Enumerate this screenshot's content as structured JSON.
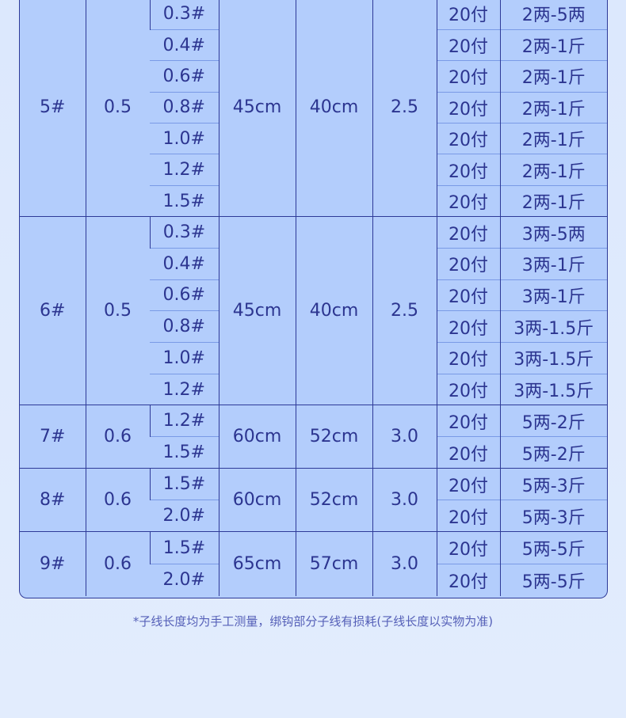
{
  "colors": {
    "background": "#dde9fd",
    "table_fill": "#b3cdfc",
    "border": "#2e3a98",
    "text": "#2c3590"
  },
  "groups": [
    {
      "model": "5#",
      "diameter": "0.5",
      "length_a": "45cm",
      "length_b": "40cm",
      "size": "2.5",
      "rows": [
        {
          "line": "0.3#",
          "qty": "20付",
          "load": "2两-5两"
        },
        {
          "line": "0.4#",
          "qty": "20付",
          "load": "2两-1斤"
        },
        {
          "line": "0.6#",
          "qty": "20付",
          "load": "2两-1斤"
        },
        {
          "line": "0.8#",
          "qty": "20付",
          "load": "2两-1斤"
        },
        {
          "line": "1.0#",
          "qty": "20付",
          "load": "2两-1斤"
        },
        {
          "line": "1.2#",
          "qty": "20付",
          "load": "2两-1斤"
        },
        {
          "line": "1.5#",
          "qty": "20付",
          "load": "2两-1斤"
        }
      ]
    },
    {
      "model": "6#",
      "diameter": "0.5",
      "length_a": "45cm",
      "length_b": "40cm",
      "size": "2.5",
      "rows": [
        {
          "line": "0.3#",
          "qty": "20付",
          "load": "3两-5两"
        },
        {
          "line": "0.4#",
          "qty": "20付",
          "load": "3两-1斤"
        },
        {
          "line": "0.6#",
          "qty": "20付",
          "load": "3两-1斤"
        },
        {
          "line": "0.8#",
          "qty": "20付",
          "load": "3两-1.5斤"
        },
        {
          "line": "1.0#",
          "qty": "20付",
          "load": "3两-1.5斤"
        },
        {
          "line": "1.2#",
          "qty": "20付",
          "load": "3两-1.5斤"
        }
      ]
    },
    {
      "model": "7#",
      "diameter": "0.6",
      "length_a": "60cm",
      "length_b": "52cm",
      "size": "3.0",
      "rows": [
        {
          "line": "1.2#",
          "qty": "20付",
          "load": "5两-2斤"
        },
        {
          "line": "1.5#",
          "qty": "20付",
          "load": "5两-2斤"
        }
      ]
    },
    {
      "model": "8#",
      "diameter": "0.6",
      "length_a": "60cm",
      "length_b": "52cm",
      "size": "3.0",
      "rows": [
        {
          "line": "1.5#",
          "qty": "20付",
          "load": "5两-3斤"
        },
        {
          "line": "2.0#",
          "qty": "20付",
          "load": "5两-3斤"
        }
      ]
    },
    {
      "model": "9#",
      "diameter": "0.6",
      "length_a": "65cm",
      "length_b": "57cm",
      "size": "3.0",
      "rows": [
        {
          "line": "1.5#",
          "qty": "20付",
          "load": "5两-5斤"
        },
        {
          "line": "2.0#",
          "qty": "20付",
          "load": "5两-5斤"
        }
      ]
    }
  ],
  "footnote": "*子线长度均为手工测量，绑钩部分子线有损耗(子线长度以实物为准)"
}
